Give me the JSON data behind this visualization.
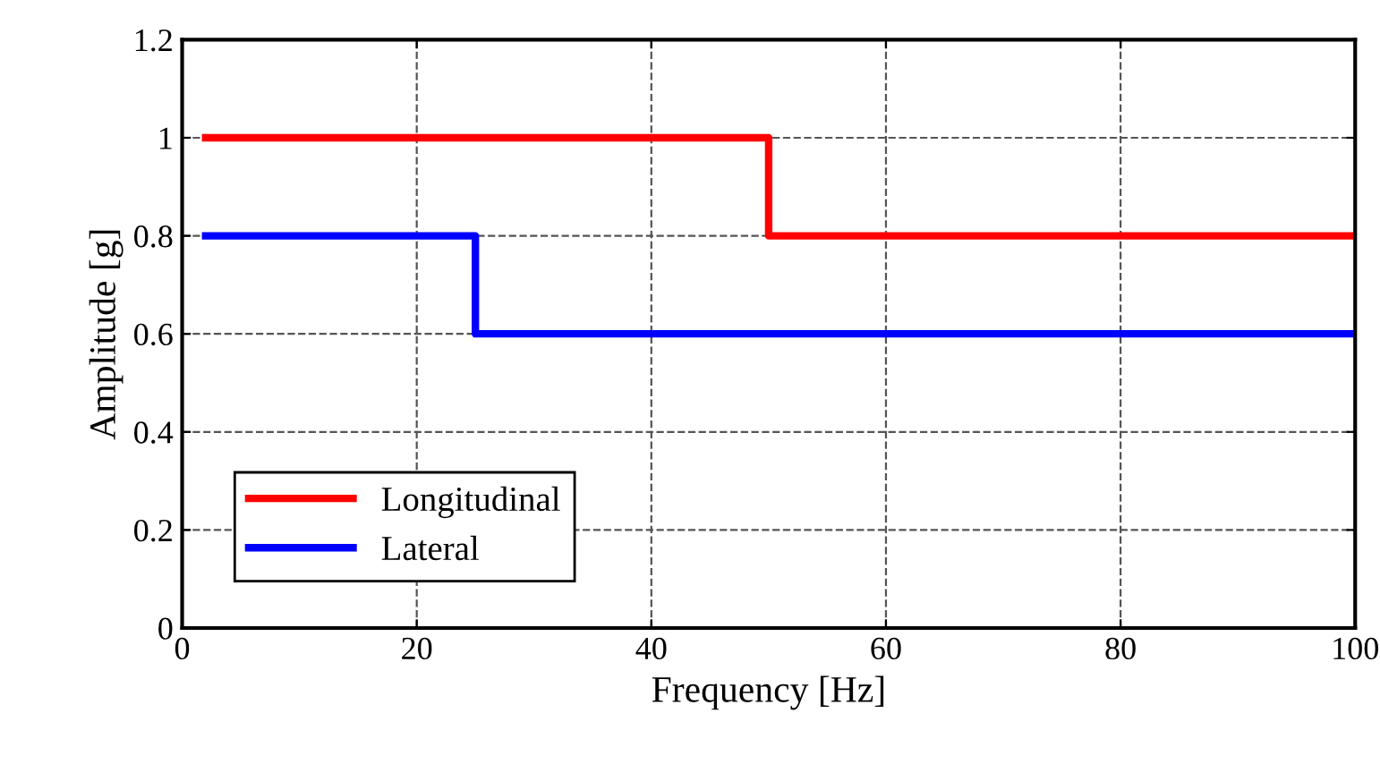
{
  "chart_data": {
    "type": "step",
    "xlabel": "Frequency [Hz]",
    "ylabel": "Amplitude [g]",
    "series": [
      {
        "name": "Longitudinal",
        "color": "#ff0000",
        "x": [
          2,
          50,
          100
        ],
        "values": [
          1,
          0.8,
          0.8
        ]
      },
      {
        "name": "Lateral",
        "color": "#0000ff",
        "x": [
          2,
          25,
          100
        ],
        "values": [
          0.8,
          0.6,
          0.6
        ]
      }
    ],
    "xlim": [
      0,
      100
    ],
    "xticks": [
      0,
      20,
      40,
      60,
      80,
      100
    ],
    "ylim": [
      0,
      1.2
    ],
    "yticks": [
      0,
      0.2,
      0.4,
      0.6,
      0.8,
      1,
      1.2
    ],
    "grid": true,
    "legend": "bottom left",
    "line_style": "solid",
    "marker": "none"
  }
}
